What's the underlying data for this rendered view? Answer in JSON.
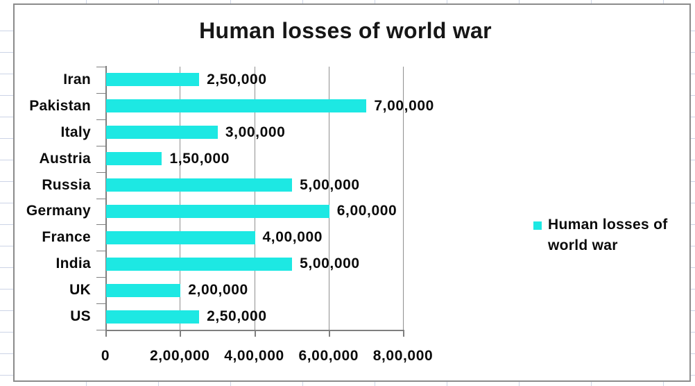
{
  "chart_data": {
    "type": "bar",
    "orientation": "horizontal",
    "title": "Human losses of world war",
    "categories": [
      "Iran",
      "Pakistan",
      "Italy",
      "Austria",
      "Russia",
      "Germany",
      "France",
      "India",
      "UK",
      "US"
    ],
    "values": [
      250000,
      700000,
      300000,
      150000,
      500000,
      600000,
      400000,
      500000,
      200000,
      250000
    ],
    "value_labels": [
      "2,50,000",
      "7,00,000",
      "3,00,000",
      "1,50,000",
      "5,00,000",
      "6,00,000",
      "4,00,000",
      "5,00,000",
      "2,00,000",
      "2,50,000"
    ],
    "x_axis": {
      "min": 0,
      "max": 800000,
      "tick_values": [
        0,
        200000,
        400000,
        600000,
        800000
      ],
      "tick_labels": [
        "0",
        "2,00,000",
        "4,00,000",
        "6,00,000",
        "8,00,000"
      ]
    },
    "grid": "vertical-only",
    "legend": {
      "position": "right",
      "label": "Human losses of world war",
      "lines": [
        "Human losses of",
        "world war"
      ]
    }
  },
  "colors": {
    "bar": "#1de8e3",
    "axis": "#7f7f7f",
    "plot_gridline": "#8f8f8f",
    "chart_border": "#8b8b8b",
    "sheet_gridline": "#ccd4e6",
    "text": "#0b0b0b"
  }
}
